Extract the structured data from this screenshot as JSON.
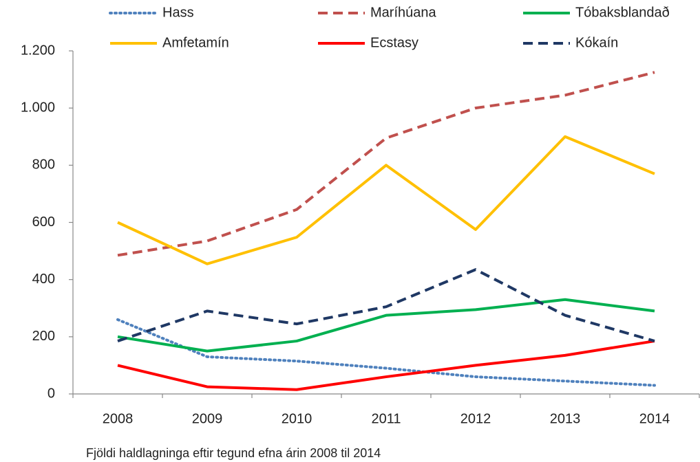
{
  "chart_data": {
    "type": "line",
    "title": "Fjöldi haldlagninga eftir tegund efna árin 2008 til 2014",
    "categories": [
      "2008",
      "2009",
      "2010",
      "2011",
      "2012",
      "2013",
      "2014"
    ],
    "ylim": [
      0,
      1200
    ],
    "yticks": [
      0,
      200,
      400,
      600,
      800,
      {
        "value": 1000,
        "label": "1.000"
      },
      {
        "value": 1200,
        "label": "1.200"
      }
    ],
    "series": [
      {
        "name": "Hass",
        "color": "#4f81bd",
        "dash": "dotted",
        "values": [
          260,
          130,
          115,
          90,
          60,
          45,
          30
        ]
      },
      {
        "name": "Maríhúana",
        "color": "#c0504d",
        "dash": "dashed",
        "values": [
          485,
          535,
          645,
          895,
          1000,
          1045,
          1125
        ]
      },
      {
        "name": "Tóbaksblandað",
        "color": "#00b050",
        "dash": "solid",
        "values": [
          200,
          150,
          185,
          275,
          295,
          330,
          290
        ]
      },
      {
        "name": "Amfetamín",
        "color": "#ffc000",
        "dash": "solid",
        "values": [
          600,
          455,
          548,
          800,
          575,
          900,
          770
        ]
      },
      {
        "name": "Ecstasy",
        "color": "#ff0000",
        "dash": "solid",
        "values": [
          100,
          25,
          15,
          60,
          100,
          135,
          185
        ]
      },
      {
        "name": "Kókaín",
        "color": "#1f3864",
        "dash": "dashed",
        "values": [
          185,
          290,
          245,
          305,
          435,
          275,
          185
        ]
      }
    ]
  }
}
